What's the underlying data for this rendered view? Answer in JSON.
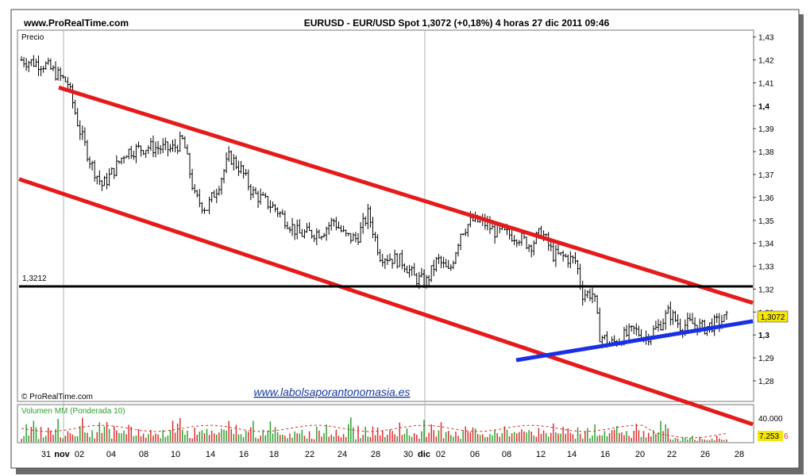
{
  "header": {
    "site": "www.ProRealTime.com",
    "symbol_info": "EURUSD - EUR/USD Spot    1,3072 (+0,18%)    4 horas  27 dic 2011 09:46"
  },
  "price_panel": {
    "label": "Precio",
    "watermark_left": "© ProRealTime.com",
    "watermark_center": "www.labolsaporantonomasia.es",
    "resistance_label": "1,3212",
    "last_price_label": "1,3072"
  },
  "volume_panel": {
    "label": "Volumen MM (Ponderada 10)",
    "max_label": "40.000",
    "last_label": "7.253",
    "last_suffix": "6"
  },
  "colors": {
    "channel": "#e51b1b",
    "support": "#1a2fe6",
    "resistance": "#000000",
    "candles": "#000000",
    "vol_up": "#2e9f2e",
    "vol_down": "#d93030",
    "price_tag": "#f5e60a"
  },
  "chart_data": {
    "type": "line",
    "title": "EURUSD - EUR/USD Spot",
    "timeframe": "4 horas",
    "x_tick_labels": [
      "31",
      "nov",
      "02",
      "04",
      "08",
      "10",
      "14",
      "16",
      "18",
      "22",
      "24",
      "28",
      "30",
      "dic",
      "02",
      "06",
      "08",
      "12",
      "14",
      "16",
      "20",
      "22",
      "26",
      "28"
    ],
    "y_tick_labels": [
      "1,43",
      "1,42",
      "1,41",
      "1,4",
      "1,39",
      "1,38",
      "1,37",
      "1,36",
      "1,35",
      "1,34",
      "1,33",
      "1,32",
      "1,31",
      "1,3",
      "1,29",
      "1,28"
    ],
    "ylim": [
      1.271,
      1.433
    ],
    "price_path": [
      [
        0,
        1.42
      ],
      [
        4,
        1.418
      ],
      [
        8,
        1.41
      ],
      [
        10,
        1.39
      ],
      [
        12,
        1.375
      ],
      [
        14,
        1.365
      ],
      [
        16,
        1.372
      ],
      [
        18,
        1.38
      ],
      [
        22,
        1.382
      ],
      [
        26,
        1.381
      ],
      [
        28,
        1.385
      ],
      [
        30,
        1.36
      ],
      [
        32,
        1.355
      ],
      [
        34,
        1.365
      ],
      [
        36,
        1.378
      ],
      [
        38,
        1.372
      ],
      [
        40,
        1.362
      ],
      [
        44,
        1.355
      ],
      [
        48,
        1.344
      ],
      [
        52,
        1.345
      ],
      [
        54,
        1.35
      ],
      [
        56,
        1.343
      ],
      [
        58,
        1.342
      ],
      [
        60,
        1.353
      ],
      [
        62,
        1.335
      ],
      [
        66,
        1.332
      ],
      [
        68,
        1.325
      ],
      [
        70,
        1.323
      ],
      [
        72,
        1.333
      ],
      [
        74,
        1.327
      ],
      [
        76,
        1.345
      ],
      [
        78,
        1.35
      ],
      [
        80,
        1.349
      ],
      [
        82,
        1.345
      ],
      [
        86,
        1.343
      ],
      [
        88,
        1.339
      ],
      [
        90,
        1.345
      ],
      [
        92,
        1.335
      ],
      [
        94,
        1.334
      ],
      [
        96,
        1.332
      ],
      [
        97,
        1.318
      ],
      [
        99,
        1.318
      ],
      [
        100,
        1.3
      ],
      [
        102,
        1.296
      ],
      [
        106,
        1.302
      ],
      [
        108,
        1.299
      ],
      [
        110,
        1.303
      ],
      [
        112,
        1.31
      ],
      [
        114,
        1.304
      ],
      [
        116,
        1.305
      ],
      [
        118,
        1.303
      ],
      [
        120,
        1.305
      ],
      [
        122,
        1.3072
      ]
    ],
    "volume_profile": [
      0.3,
      0.5,
      0.7,
      0.4,
      0.6,
      0.8,
      0.5,
      0.3,
      0.6,
      0.4
    ],
    "channel_upper": [
      [
        1.408,
        1.314
      ]
    ],
    "channel_lower": [
      [
        1.368,
        1.261
      ]
    ],
    "support_line": [
      [
        1.289,
        1.306
      ]
    ],
    "resistance_level": 1.3212,
    "last_price": 1.3072
  }
}
